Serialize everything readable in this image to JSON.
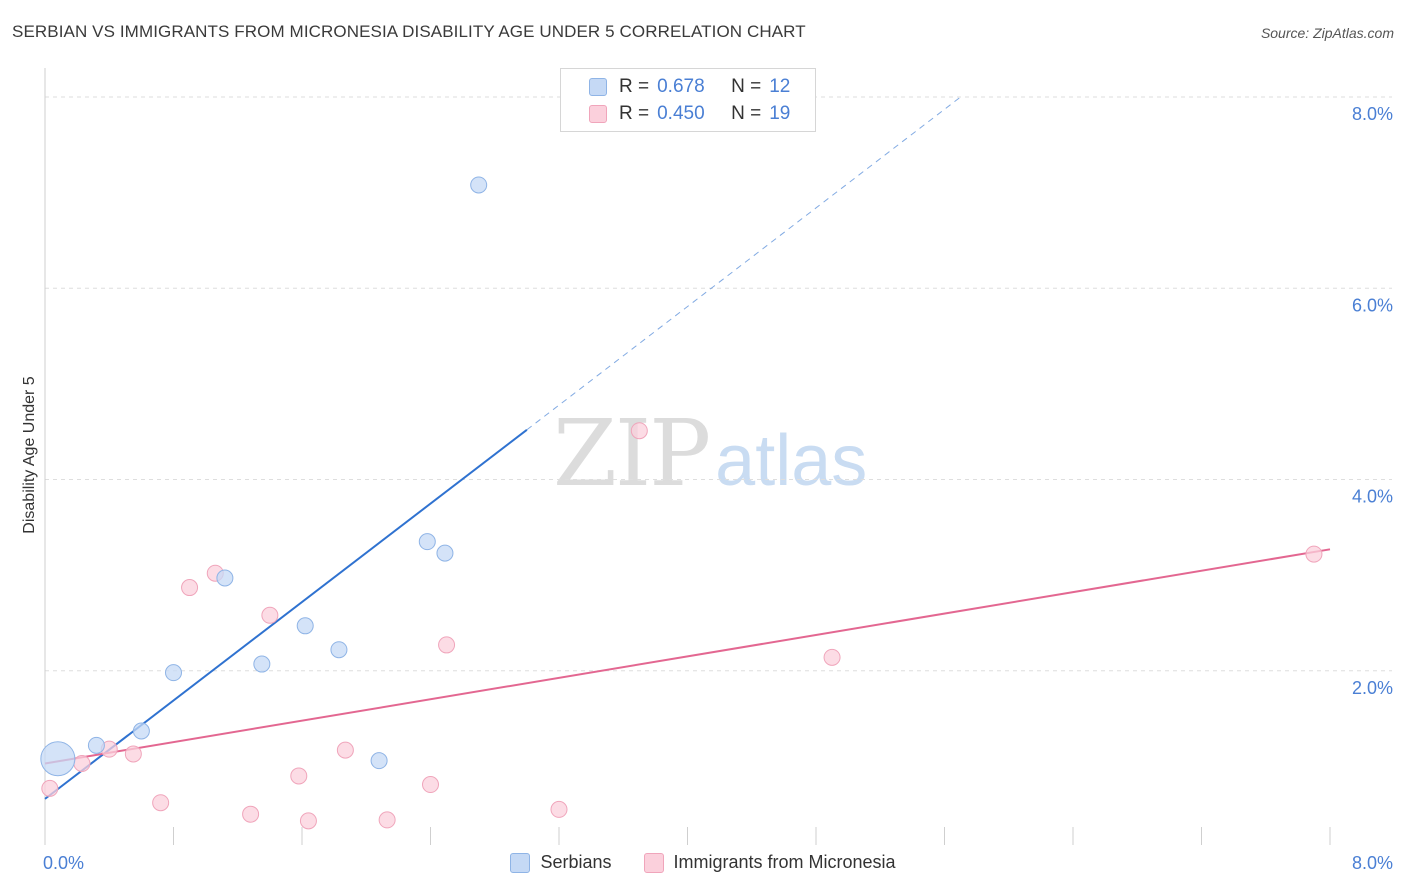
{
  "title": "SERBIAN VS IMMIGRANTS FROM MICRONESIA DISABILITY AGE UNDER 5 CORRELATION CHART",
  "source": "Source: ZipAtlas.com",
  "watermark": {
    "zip": "ZIP",
    "atlas": "atlas"
  },
  "colors": {
    "serbians_fill": "#c5d9f5",
    "serbians_stroke": "#8fb4e6",
    "serbians_line": "#2f72d0",
    "micronesia_fill": "#fbd0dc",
    "micronesia_stroke": "#f0a5bb",
    "micronesia_line": "#e36791",
    "tick_text": "#4a7fd4",
    "grid": "#dedede"
  },
  "legend": {
    "rows": [
      {
        "r_label": "R =",
        "r_value": "0.678",
        "n_label": "N =",
        "n_value": "12"
      },
      {
        "r_label": "R =",
        "r_value": "0.450",
        "n_label": "N =",
        "n_value": "19"
      }
    ]
  },
  "bottom_legend": {
    "serbians": "Serbians",
    "micronesia": "Immigrants from Micronesia"
  },
  "chart_data": {
    "type": "scatter",
    "title": "SERBIAN VS IMMIGRANTS FROM MICRONESIA DISABILITY AGE UNDER 5 CORRELATION CHART",
    "xlabel": "",
    "ylabel": "Disability Age Under 5",
    "xlim": [
      0,
      8.0
    ],
    "ylim": [
      0,
      8.0
    ],
    "x_tick_labels": [
      "0.0%",
      "8.0%"
    ],
    "y_tick_labels": [
      "2.0%",
      "4.0%",
      "6.0%",
      "8.0%"
    ],
    "y_ticks": [
      2.0,
      4.0,
      6.0,
      8.0
    ],
    "x_minor_ticks": [
      0.8,
      1.6,
      2.4,
      3.2,
      4.0,
      4.8,
      5.6,
      6.4,
      7.2,
      8.0
    ],
    "series": [
      {
        "name": "Serbians",
        "points": [
          {
            "x": 0.08,
            "y": 1.08,
            "size": "large"
          },
          {
            "x": 0.32,
            "y": 1.22
          },
          {
            "x": 0.6,
            "y": 1.37
          },
          {
            "x": 0.8,
            "y": 1.98
          },
          {
            "x": 1.12,
            "y": 2.97
          },
          {
            "x": 1.35,
            "y": 2.07
          },
          {
            "x": 1.62,
            "y": 2.47
          },
          {
            "x": 1.83,
            "y": 2.22
          },
          {
            "x": 2.08,
            "y": 1.06
          },
          {
            "x": 2.38,
            "y": 3.35
          },
          {
            "x": 2.49,
            "y": 3.23
          },
          {
            "x": 2.7,
            "y": 7.08
          }
        ],
        "trend": {
          "x0": 0.0,
          "y0": 0.66,
          "x1": 3.0,
          "y1": 4.52,
          "dashed_to": {
            "x": 5.7,
            "y": 8.0
          }
        }
      },
      {
        "name": "Immigrants from Micronesia",
        "points": [
          {
            "x": 0.03,
            "y": 0.77
          },
          {
            "x": 0.23,
            "y": 1.03
          },
          {
            "x": 0.4,
            "y": 1.18
          },
          {
            "x": 0.55,
            "y": 1.13
          },
          {
            "x": 0.72,
            "y": 0.62
          },
          {
            "x": 0.9,
            "y": 2.87
          },
          {
            "x": 1.06,
            "y": 3.02
          },
          {
            "x": 1.28,
            "y": 0.5
          },
          {
            "x": 1.4,
            "y": 2.58
          },
          {
            "x": 1.58,
            "y": 0.9
          },
          {
            "x": 1.64,
            "y": 0.43
          },
          {
            "x": 1.87,
            "y": 1.17
          },
          {
            "x": 2.13,
            "y": 0.44
          },
          {
            "x": 2.4,
            "y": 0.81
          },
          {
            "x": 2.5,
            "y": 2.27
          },
          {
            "x": 3.2,
            "y": 0.55
          },
          {
            "x": 3.7,
            "y": 4.51
          },
          {
            "x": 4.9,
            "y": 2.14
          },
          {
            "x": 7.9,
            "y": 3.22
          }
        ],
        "trend": {
          "x0": 0.0,
          "y0": 1.03,
          "x1": 8.0,
          "y1": 3.27
        }
      }
    ]
  }
}
